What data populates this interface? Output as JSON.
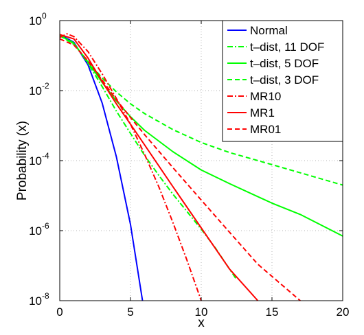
{
  "chart_data": {
    "type": "line",
    "xlabel": "x",
    "ylabel": "Probability (x)",
    "xlim": [
      0,
      20
    ],
    "ylim": [
      1e-08,
      1
    ],
    "y_scale": "log",
    "grid": true,
    "legend_position": "top-right",
    "x_ticks": [
      0,
      5,
      10,
      15,
      20
    ],
    "x_tick_labels": [
      "0",
      "5",
      "10",
      "15",
      "20"
    ],
    "y_ticks": [
      1e-08,
      1e-06,
      0.0001,
      0.01,
      1
    ],
    "y_tick_labels": [
      {
        "base": "10",
        "exp": "-8"
      },
      {
        "base": "10",
        "exp": "-6"
      },
      {
        "base": "10",
        "exp": "-4"
      },
      {
        "base": "10",
        "exp": "-2"
      },
      {
        "base": "10",
        "exp": "0"
      }
    ],
    "series": [
      {
        "name": "Normal",
        "color": "#0000ff",
        "dash": "solid",
        "x": [
          0,
          1,
          2,
          3,
          4,
          5,
          5.85
        ],
        "y": [
          0.4,
          0.24,
          0.054,
          0.0044,
          0.00013,
          1.5e-06,
          1e-08
        ]
      },
      {
        "name": "t–dist, 11 DOF",
        "color": "#00ff00",
        "dash": "dashdot",
        "x": [
          0,
          1,
          2,
          3,
          4,
          5,
          6,
          7,
          8,
          9,
          10,
          11,
          12,
          12.5
        ],
        "y": [
          0.39,
          0.23,
          0.06,
          0.013,
          0.0026,
          0.0006,
          0.00014,
          3.8e-05,
          1.1e-05,
          3.5e-06,
          1.1e-06,
          3.2e-07,
          8e-08,
          4e-08
        ]
      },
      {
        "name": "t–dist, 5 DOF",
        "color": "#00ff00",
        "dash": "solid",
        "x": [
          0,
          1,
          2,
          3,
          4,
          5,
          6,
          8,
          10,
          12,
          15,
          17,
          20
        ],
        "y": [
          0.38,
          0.22,
          0.065,
          0.017,
          0.0051,
          0.0018,
          0.00073,
          0.00018,
          5.4e-05,
          2.2e-05,
          6.1e-06,
          2.9e-06,
          7e-07
        ]
      },
      {
        "name": "t–dist, 3 DOF",
        "color": "#00ff00",
        "dash": "dashed",
        "x": [
          0,
          1,
          2,
          3,
          4,
          5,
          6,
          8,
          10,
          12,
          15,
          17,
          20
        ],
        "y": [
          0.37,
          0.21,
          0.068,
          0.023,
          0.0092,
          0.0042,
          0.0022,
          0.00077,
          0.00033,
          0.00017,
          7.7e-05,
          4.5e-05,
          2e-05
        ]
      },
      {
        "name": "MR10",
        "color": "#ff0000",
        "dash": "dashdot",
        "x": [
          0,
          0.5,
          1,
          2,
          3,
          4,
          5,
          6,
          7,
          8,
          9,
          10
        ],
        "y": [
          0.33,
          0.42,
          0.35,
          0.13,
          0.03,
          0.006,
          0.0011,
          0.00015,
          1.8e-05,
          1.7e-06,
          1.4e-07,
          1e-08
        ]
      },
      {
        "name": "MR1",
        "color": "#ff0000",
        "dash": "solid",
        "x": [
          0,
          1,
          2,
          3,
          4,
          5,
          6,
          8,
          10,
          12,
          14
        ],
        "y": [
          0.4,
          0.3,
          0.085,
          0.018,
          0.0042,
          0.0011,
          0.00028,
          1.8e-05,
          1.2e-06,
          8e-08,
          1e-08
        ]
      },
      {
        "name": "MR01",
        "color": "#ff0000",
        "dash": "dashed",
        "x": [
          0,
          1,
          2,
          3,
          4,
          5,
          6,
          8,
          10,
          12,
          14,
          17
        ],
        "y": [
          0.3,
          0.2,
          0.07,
          0.02,
          0.0055,
          0.0017,
          0.00055,
          6.3e-05,
          7.5e-06,
          9e-07,
          1.1e-07,
          1e-08
        ]
      }
    ]
  }
}
